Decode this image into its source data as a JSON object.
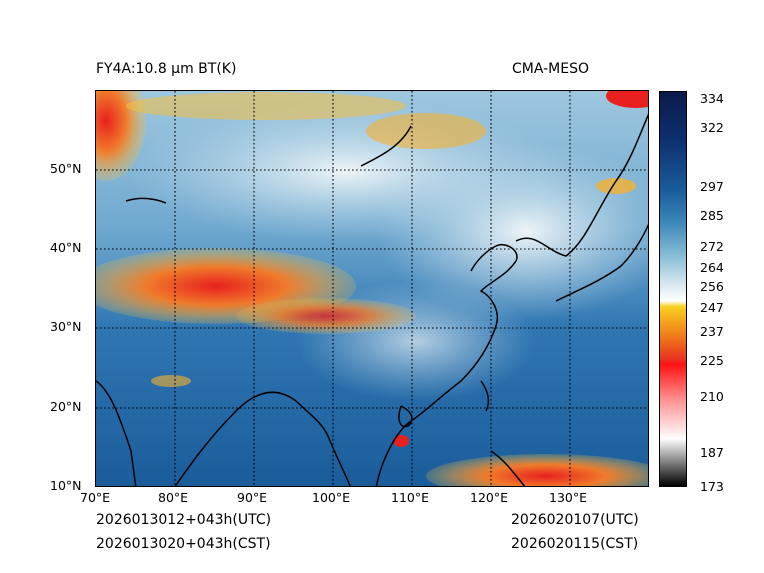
{
  "header": {
    "left_title": "FY4A:10.8 µm BT(K)",
    "right_title": "CMA-MESO"
  },
  "map": {
    "lon_labels": [
      "70°E",
      "80°E",
      "90°E",
      "100°E",
      "110°E",
      "120°E",
      "130°E"
    ],
    "lat_labels": [
      "50°N",
      "40°N",
      "30°N",
      "20°N",
      "10°N"
    ],
    "lon_range": [
      70,
      140
    ],
    "lat_range": [
      10,
      60
    ]
  },
  "colorbar": {
    "ticks": [
      "334",
      "322",
      "297",
      "285",
      "272",
      "264",
      "256",
      "247",
      "237",
      "225",
      "210",
      "187",
      "173"
    ]
  },
  "footer": {
    "left_utc": "2026013012+043h(UTC)",
    "left_cst": "2026013020+043h(CST)",
    "right_utc": "2026020107(UTC)",
    "right_cst": "2026020115(CST)"
  },
  "colors": {
    "ocean_warm": "#1b5f9e",
    "land_mid": "#4d8fc0",
    "cloud_light": "#d8e8f0",
    "cloud_cold": "#f5a623",
    "cloud_coldest": "#e8201f"
  }
}
